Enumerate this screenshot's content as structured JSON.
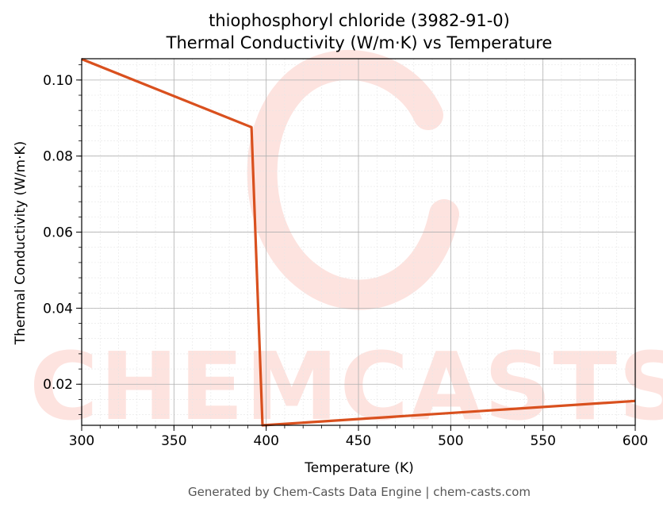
{
  "chart_data": {
    "type": "line",
    "title_line1": "thiophosphoryl chloride (3982-91-0)",
    "title_line2": "Thermal Conductivity (W/m·K) vs Temperature",
    "xlabel": "Temperature (K)",
    "ylabel": "Thermal Conductivity (W/m·K)",
    "xlim": [
      300,
      600
    ],
    "ylim": [
      0.0092,
      0.1056
    ],
    "x_ticks": [
      300,
      350,
      400,
      450,
      500,
      550,
      600
    ],
    "y_ticks": [
      0.02,
      0.04,
      0.06,
      0.08,
      0.1
    ],
    "y_tick_labels": [
      "0.02",
      "0.04",
      "0.06",
      "0.08",
      "0.10"
    ],
    "grid": true,
    "line_color": "#d9501e",
    "series": [
      {
        "x": [
          300,
          392,
          398,
          600
        ],
        "values": [
          0.1055,
          0.0876,
          0.0092,
          0.0156
        ]
      }
    ]
  },
  "watermark": {
    "text": "CHEMCASTS",
    "color": "#fde0dc"
  },
  "footer": "Generated by Chem-Casts Data Engine | chem-casts.com"
}
